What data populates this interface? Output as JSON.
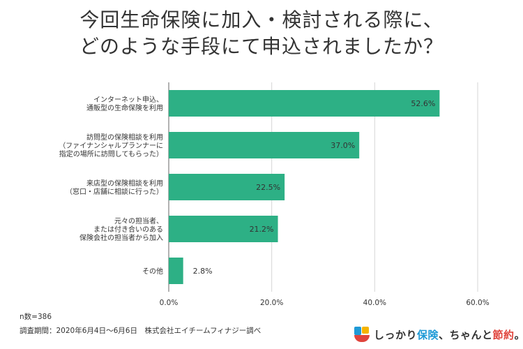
{
  "title_lines": [
    "今回生命保険に加入・検討される際に、",
    "どのような手段にて申込されましたか？"
  ],
  "chart_data": {
    "type": "bar",
    "orientation": "horizontal",
    "categories": [
      [
        "インターネット申込、",
        "通販型の生命保険を利用"
      ],
      [
        "訪問型の保険相談を利用",
        "（ファイナンシャルプランナーに",
        "指定の場所に訪問してもらった）"
      ],
      [
        "来店型の保険相談を利用",
        "（窓口・店舗に相談に行った）"
      ],
      [
        "元々の担当者、",
        "または付き合いのある",
        "保険会社の担当者から加入"
      ],
      [
        "その他"
      ]
    ],
    "values": [
      52.6,
      37.0,
      22.5,
      21.2,
      2.8
    ],
    "value_labels": [
      "52.6%",
      "37.0%",
      "22.5%",
      "21.2%",
      "2.8%"
    ],
    "xlim": [
      0,
      60
    ],
    "ticks": [
      "0.0%",
      "20.0%",
      "40.0%",
      "60.0%"
    ],
    "tick_values": [
      0,
      20,
      40,
      60
    ],
    "grid": true,
    "bar_color": "#2db085"
  },
  "footer": {
    "sample": "n数=386",
    "survey": "調査期間：2020年6月4日〜6月6日　株式会社エイチームフィナジー調べ"
  },
  "logo": {
    "part1": "しっかり",
    "part2": "保険",
    "part3": "、ちゃんと",
    "part4": "節約",
    "part5": "。",
    "colors": [
      "#1f9ad6",
      "#f5b400",
      "#e0443c"
    ]
  }
}
